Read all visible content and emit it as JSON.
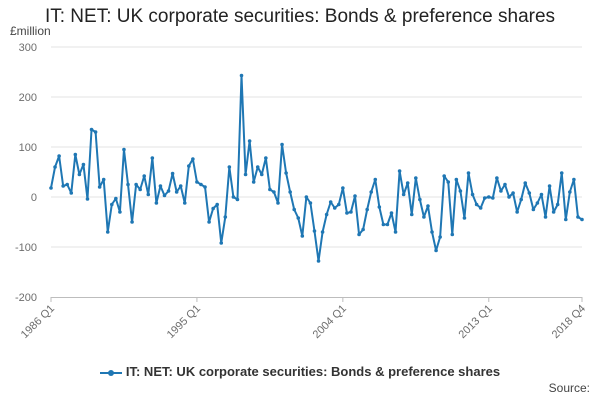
{
  "chart_data": {
    "type": "line",
    "title": "IT: NET: UK corporate securities: Bonds & preference shares",
    "ylabel": "£million",
    "xlabel": "",
    "ylim": [
      -200,
      300
    ],
    "yticks": [
      300,
      200,
      100,
      0,
      -100,
      -200
    ],
    "x_tick_labels": [
      "1986 Q1",
      "1995 Q1",
      "2004 Q1",
      "2013 Q1",
      "2018 Q4"
    ],
    "x_start": "1986 Q1",
    "x_end": "2018 Q4",
    "grid": true,
    "legend_position": "bottom",
    "color": "#1f77b4",
    "series": [
      {
        "name": "IT: NET: UK corporate securities: Bonds & preference shares",
        "values": [
          18,
          60,
          82,
          22,
          25,
          8,
          85,
          45,
          65,
          -4,
          135,
          130,
          20,
          35,
          -70,
          -15,
          -3,
          -30,
          95,
          25,
          -50,
          25,
          15,
          42,
          5,
          78,
          -12,
          22,
          3,
          12,
          47,
          10,
          22,
          -12,
          62,
          76,
          30,
          25,
          20,
          -50,
          -23,
          -15,
          -92,
          -40,
          60,
          0,
          -5,
          243,
          45,
          112,
          30,
          60,
          45,
          78,
          15,
          10,
          -12,
          105,
          48,
          10,
          -25,
          -42,
          -78,
          0,
          -12,
          -68,
          -128,
          -70,
          -35,
          -10,
          -22,
          -15,
          18,
          -32,
          -30,
          2,
          -75,
          -65,
          -25,
          10,
          35,
          -20,
          -55,
          -55,
          -32,
          -70,
          52,
          5,
          28,
          -35,
          38,
          -5,
          -40,
          -18,
          -70,
          -107,
          -80,
          42,
          30,
          -75,
          35,
          12,
          -42,
          48,
          5,
          -15,
          -22,
          -2,
          0,
          -2,
          38,
          12,
          25,
          0,
          8,
          -30,
          -5,
          28,
          8,
          -25,
          -12,
          5,
          -40,
          22,
          -30,
          -15,
          48,
          -45,
          10,
          35,
          -40,
          -45
        ]
      }
    ]
  },
  "legend": {
    "label": "IT: NET: UK corporate securities: Bonds & preference shares"
  },
  "footer": {
    "source_label": "Source:"
  }
}
